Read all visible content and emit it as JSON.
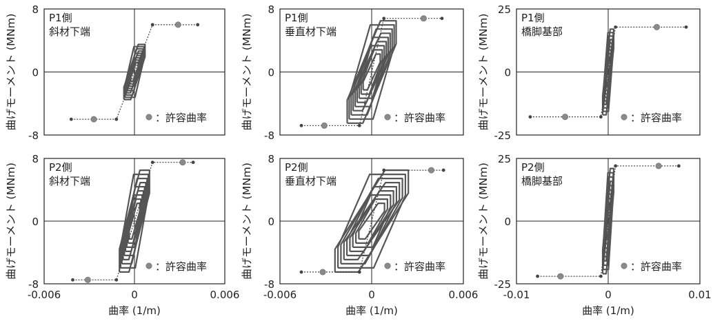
{
  "colors": {
    "axis": "#222222",
    "loop": "#555555",
    "envelope": "#444444",
    "allowable_marker": "#8a8a8a",
    "background": "#ffffff"
  },
  "chart_data": [
    {
      "type": "line",
      "title_lines": [
        "P1側",
        "斜材下端"
      ],
      "ylabel": "曲げモーメント (MNm)",
      "xlabel": "",
      "xlim": [
        -0.006,
        0.006
      ],
      "ylim": [
        -8,
        8
      ],
      "x_ticks": [],
      "y_ticks": [
        "8",
        "0",
        "-8"
      ],
      "legend": "：許容曲率",
      "envelope": [
        [
          -0.0042,
          -6.0
        ],
        [
          -0.0012,
          -6.0
        ],
        [
          0.0012,
          6.0
        ],
        [
          0.0042,
          6.0
        ]
      ],
      "allowable_curvature": [
        [
          -0.0027,
          -6.0
        ],
        [
          0.0029,
          6.0
        ]
      ],
      "loop_extent": {
        "x": [
          -0.0007,
          0.0007
        ],
        "y": [
          -3.5,
          3.5
        ]
      }
    },
    {
      "type": "line",
      "title_lines": [
        "P1側",
        "垂直材下端"
      ],
      "ylabel": "曲げモーメント (MNm)",
      "xlabel": "",
      "xlim": [
        -0.006,
        0.006
      ],
      "ylim": [
        -8,
        8
      ],
      "x_ticks": [],
      "y_ticks": [
        "8",
        "0",
        "-8"
      ],
      "legend": "：許容曲率",
      "envelope": [
        [
          -0.0046,
          -6.8
        ],
        [
          -0.0008,
          -6.8
        ],
        [
          0.0008,
          6.8
        ],
        [
          0.0046,
          6.8
        ]
      ],
      "allowable_curvature": [
        [
          -0.0031,
          -6.8
        ],
        [
          0.0034,
          6.8
        ]
      ],
      "loop_extent": {
        "x": [
          -0.0016,
          0.0016
        ],
        "y": [
          -6.5,
          6.5
        ]
      }
    },
    {
      "type": "line",
      "title_lines": [
        "P1側",
        "橋脚基部"
      ],
      "ylabel": "曲げモーメント (MNm)",
      "xlabel": "",
      "xlim": [
        -0.01,
        0.01
      ],
      "ylim": [
        -25,
        25
      ],
      "x_ticks": [],
      "y_ticks": [
        "25",
        "0",
        "-25"
      ],
      "legend": "：許容曲率",
      "envelope": [
        [
          -0.0085,
          -17.8
        ],
        [
          -0.0008,
          -17.8
        ],
        [
          0.0008,
          17.8
        ],
        [
          0.0085,
          17.8
        ]
      ],
      "allowable_curvature": [
        [
          -0.0047,
          -17.8
        ],
        [
          0.0053,
          17.8
        ]
      ],
      "loop_extent": {
        "x": [
          -0.0006,
          0.0006
        ],
        "y": [
          -17.0,
          17.0
        ]
      }
    },
    {
      "type": "line",
      "title_lines": [
        "P2側",
        "斜材下端"
      ],
      "ylabel": "曲げモーメント (MNm)",
      "xlabel": "曲率 (1/m)",
      "xlim": [
        -0.006,
        0.006
      ],
      "ylim": [
        -8,
        8
      ],
      "x_ticks": [
        "-0.006",
        "0",
        "0.006"
      ],
      "y_ticks": [
        "8",
        "0",
        "-8"
      ],
      "legend": "：許容曲率",
      "envelope": [
        [
          -0.0041,
          -7.5
        ],
        [
          -0.0012,
          -7.5
        ],
        [
          0.0012,
          7.5
        ],
        [
          0.0039,
          7.5
        ]
      ],
      "allowable_curvature": [
        [
          -0.0031,
          -7.5
        ],
        [
          0.0032,
          7.5
        ]
      ],
      "loop_extent": {
        "x": [
          -0.001,
          0.001
        ],
        "y": [
          -6.5,
          6.5
        ]
      }
    },
    {
      "type": "line",
      "title_lines": [
        "P2側",
        "垂直材下端"
      ],
      "ylabel": "曲げモーメント (MNm)",
      "xlabel": "曲率 (1/m)",
      "xlim": [
        -0.006,
        0.006
      ],
      "ylim": [
        -8,
        8
      ],
      "x_ticks": [
        "-0.006",
        "0",
        "0.006"
      ],
      "y_ticks": [
        "8",
        "0",
        "-8"
      ],
      "legend": "：許容曲率",
      "envelope": [
        [
          -0.0046,
          -6.5
        ],
        [
          -0.0008,
          -6.5
        ],
        [
          0.0008,
          6.5
        ],
        [
          0.0047,
          6.5
        ]
      ],
      "allowable_curvature": [
        [
          -0.0032,
          -6.5
        ],
        [
          0.0039,
          6.5
        ]
      ],
      "loop_extent": {
        "x": [
          -0.0024,
          0.0024
        ],
        "y": [
          -6.5,
          6.5
        ]
      }
    },
    {
      "type": "line",
      "title_lines": [
        "P2側",
        "橋脚基部"
      ],
      "ylabel": "曲げモーメント (MNm)",
      "xlabel": "曲率 (1/m)",
      "xlim": [
        -0.01,
        0.01
      ],
      "ylim": [
        -25,
        25
      ],
      "x_ticks": [
        "-0.01",
        "0",
        "0.01"
      ],
      "y_ticks": [
        "25",
        "0",
        "-25"
      ],
      "legend": "：許容曲率",
      "envelope": [
        [
          -0.0077,
          -22.0
        ],
        [
          -0.0008,
          -22.0
        ],
        [
          0.0008,
          22.0
        ],
        [
          0.0077,
          22.0
        ]
      ],
      "allowable_curvature": [
        [
          -0.0052,
          -22.0
        ],
        [
          0.0055,
          22.0
        ]
      ],
      "loop_extent": {
        "x": [
          -0.0006,
          0.0006
        ],
        "y": [
          -21.0,
          21.0
        ]
      }
    }
  ]
}
